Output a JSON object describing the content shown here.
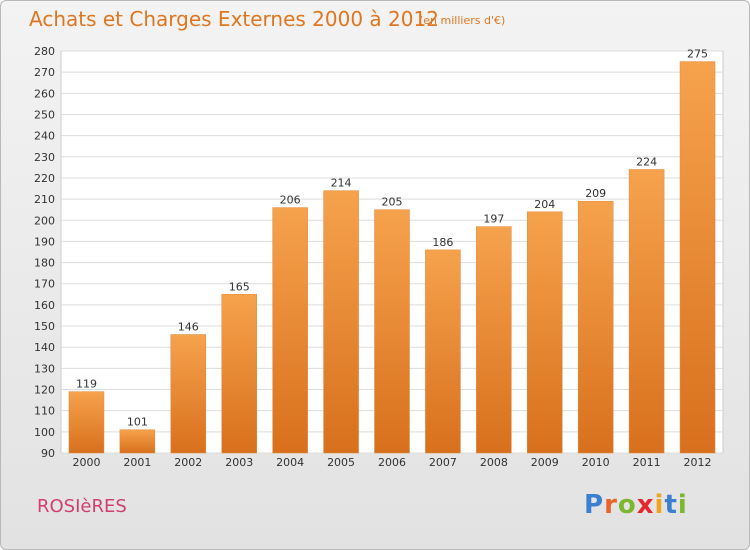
{
  "chart_data": {
    "type": "bar",
    "title": "Achats et Charges Externes 2000 à 2012",
    "subtitle": "(en milliers d'€)",
    "categories": [
      "2000",
      "2001",
      "2002",
      "2003",
      "2004",
      "2005",
      "2006",
      "2007",
      "2008",
      "2009",
      "2010",
      "2011",
      "2012"
    ],
    "values": [
      119,
      101,
      146,
      165,
      206,
      214,
      205,
      186,
      197,
      204,
      209,
      224,
      275
    ],
    "ylim": [
      90,
      280
    ],
    "yticks": [
      90,
      100,
      110,
      120,
      130,
      140,
      150,
      160,
      170,
      180,
      190,
      200,
      210,
      220,
      230,
      240,
      250,
      260,
      270,
      280
    ],
    "grid": true,
    "bar_color": "#f0923a"
  },
  "footer": {
    "town": "ROSIèRES",
    "logo_letters": [
      {
        "ch": "P",
        "color": "#3b7fd0"
      },
      {
        "ch": "r",
        "color": "#e8632a"
      },
      {
        "ch": "o",
        "color": "#7cb82f"
      },
      {
        "ch": "x",
        "color": "#e3262f"
      },
      {
        "ch": "i",
        "color": "#f2a21c"
      },
      {
        "ch": "t",
        "color": "#3b7fd0"
      },
      {
        "ch": "i",
        "color": "#7cb82f"
      }
    ]
  }
}
